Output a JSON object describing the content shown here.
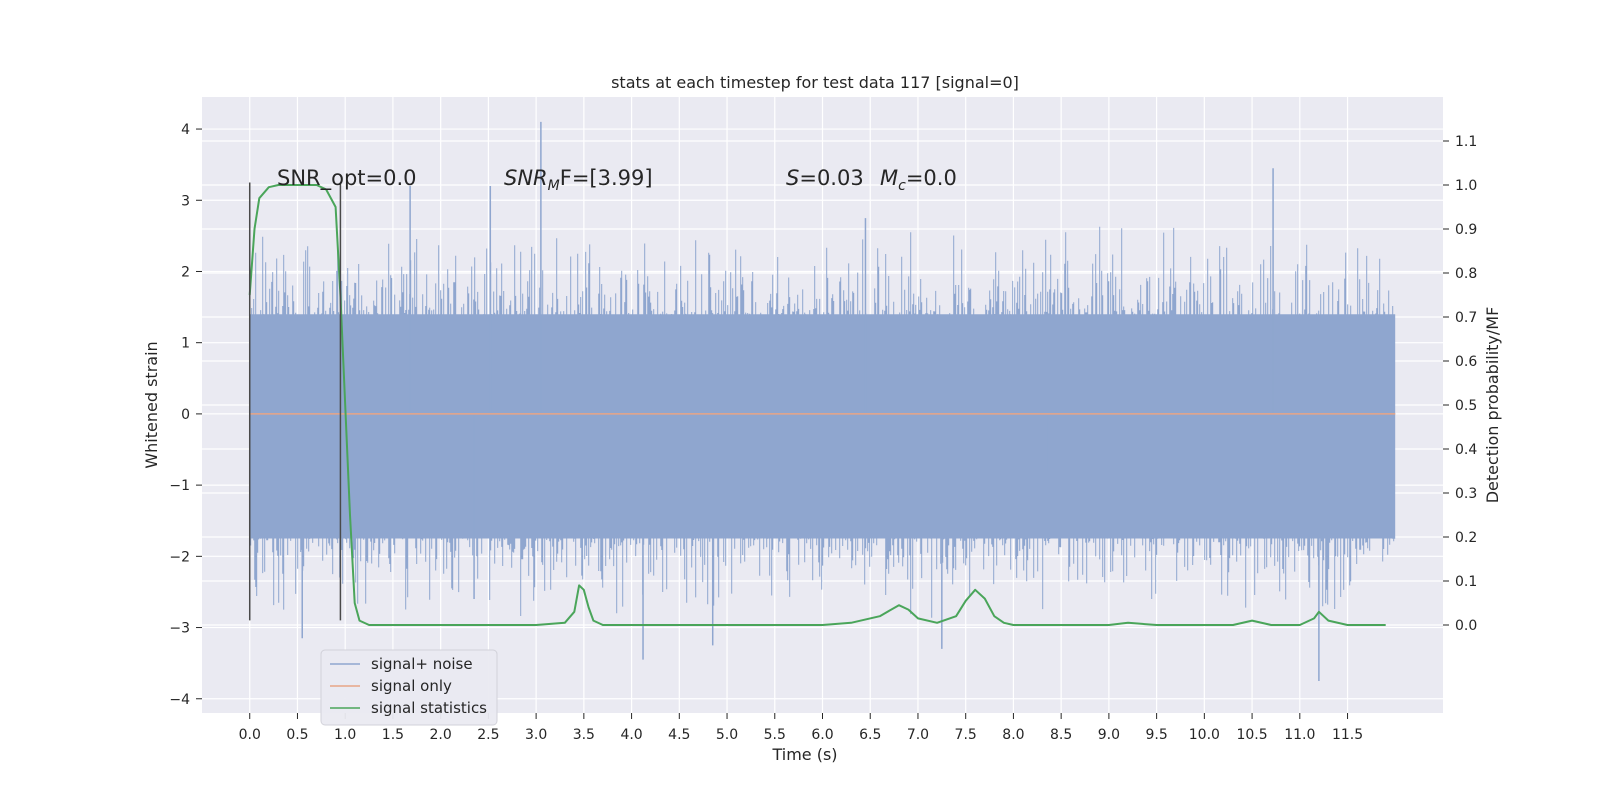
{
  "chart_data": {
    "type": "line",
    "title": "stats at each timestep for test data 117 [signal=0]",
    "xlabel": "Time (s)",
    "ylabel": "Whitened strain",
    "ylabel_right": "Detection probability/MF",
    "xlim": [
      -0.5,
      12.5
    ],
    "ylim": [
      -4.2,
      4.45
    ],
    "ylim_right": [
      -0.2,
      1.2
    ],
    "x_ticks": [
      0.0,
      0.5,
      1.0,
      1.5,
      2.0,
      2.5,
      3.0,
      3.5,
      4.0,
      4.5,
      5.0,
      5.5,
      6.0,
      6.5,
      7.0,
      7.5,
      8.0,
      8.5,
      9.0,
      9.5,
      10.0,
      10.5,
      11.0,
      11.5
    ],
    "x_tick_labels": [
      "0.0",
      "0.5",
      "1.0",
      "1.5",
      "2.0",
      "2.5",
      "3.0",
      "3.5",
      "4.0",
      "4.5",
      "5.0",
      "5.5",
      "6.0",
      "6.5",
      "7.0",
      "7.5",
      "8.0",
      "8.5",
      "9.0",
      "9.5",
      "10.0",
      "10.5",
      "11.0",
      "11.5"
    ],
    "y_ticks": [
      4,
      3,
      2,
      1,
      0,
      -1,
      -2,
      -3,
      -4
    ],
    "y_tick_labels": [
      "4",
      "3",
      "2",
      "1",
      "0",
      "−1",
      "−2",
      "−3",
      "−4"
    ],
    "y_right_ticks": [
      1.1,
      1.0,
      0.9,
      0.8,
      0.7,
      0.6,
      0.5,
      0.4,
      0.3,
      0.2,
      0.1,
      0.0
    ],
    "y_right_tick_labels": [
      "1.1",
      "1.0",
      "0.9",
      "0.8",
      "0.7",
      "0.6",
      "0.5",
      "0.4",
      "0.3",
      "0.2",
      "0.1",
      "0.0"
    ],
    "grid": true,
    "legend_position": "lower-left",
    "annotations": {
      "snr_opt": "SNR_opt=0.0",
      "snr_mf_name": "SNR",
      "snr_mf_sub": "M",
      "snr_mf_tail": "F=[3.99]",
      "s_name": "S",
      "s_value": "=0.03",
      "mc_name": "M",
      "mc_sub": "c",
      "mc_value": "=0.0"
    },
    "series": [
      {
        "name": "signal+ noise",
        "color": "#8fa6cf",
        "kind": "noise",
        "x_range": [
          0.0,
          12.0
        ],
        "body_amplitude": [
          -1.75,
          1.4
        ],
        "spikes": [
          {
            "x": 3.05,
            "y": 4.1
          },
          {
            "x": 10.72,
            "y": 3.45
          },
          {
            "x": 1.68,
            "y": 3.2
          },
          {
            "x": 2.52,
            "y": 3.2
          },
          {
            "x": 11.2,
            "y": -3.75
          },
          {
            "x": 4.12,
            "y": -3.45
          },
          {
            "x": 7.25,
            "y": -3.3
          },
          {
            "x": 0.55,
            "y": -3.15
          },
          {
            "x": 4.85,
            "y": -3.25
          },
          {
            "x": 8.35,
            "y": -0.8
          },
          {
            "x": 2.35,
            "y": -2.6
          },
          {
            "x": 6.45,
            "y": 2.75
          }
        ]
      },
      {
        "name": "signal only",
        "color": "#e8a586",
        "kind": "line",
        "x": [
          0.0,
          12.0
        ],
        "y": [
          0.0,
          0.0
        ]
      },
      {
        "name": "signal statistics",
        "color": "#4aa55a",
        "kind": "line",
        "axis": "right",
        "x": [
          0.0,
          0.05,
          0.1,
          0.2,
          0.3,
          0.5,
          0.7,
          0.8,
          0.9,
          0.95,
          1.0,
          1.05,
          1.1,
          1.15,
          1.25,
          1.5,
          2.0,
          3.0,
          3.3,
          3.4,
          3.45,
          3.5,
          3.55,
          3.6,
          3.7,
          4.0,
          5.0,
          6.0,
          6.3,
          6.6,
          6.8,
          6.9,
          7.0,
          7.2,
          7.4,
          7.5,
          7.6,
          7.7,
          7.8,
          7.9,
          8.0,
          8.5,
          9.0,
          9.2,
          9.5,
          10.0,
          10.3,
          10.5,
          10.7,
          11.0,
          11.15,
          11.2,
          11.3,
          11.5,
          11.9
        ],
        "y": [
          0.75,
          0.9,
          0.97,
          0.995,
          1.0,
          1.0,
          1.0,
          0.99,
          0.95,
          0.75,
          0.5,
          0.25,
          0.05,
          0.01,
          0.0,
          0.0,
          0.0,
          0.0,
          0.005,
          0.03,
          0.09,
          0.08,
          0.04,
          0.01,
          0.0,
          0.0,
          0.0,
          0.0,
          0.005,
          0.02,
          0.045,
          0.035,
          0.015,
          0.005,
          0.02,
          0.055,
          0.08,
          0.06,
          0.02,
          0.005,
          0.0,
          0.0,
          0.0,
          0.005,
          0.0,
          0.0,
          0.0,
          0.01,
          0.0,
          0.0,
          0.015,
          0.03,
          0.01,
          0.0,
          0.0
        ]
      }
    ],
    "markers": [
      {
        "x": 0.0,
        "y_top": 3.25,
        "y_bottom": -2.9
      },
      {
        "x": 0.95,
        "y_top": 3.25,
        "y_bottom": -2.9
      }
    ]
  }
}
